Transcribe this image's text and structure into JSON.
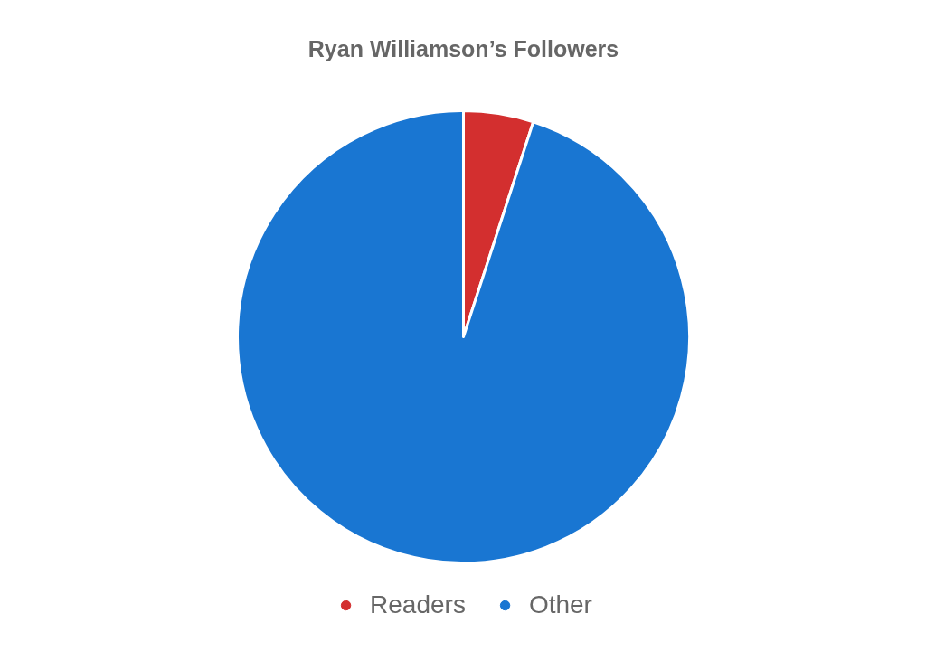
{
  "chart_data": {
    "type": "pie",
    "title": "Ryan Williamson’s Followers",
    "categories": [
      "Readers",
      "Other"
    ],
    "values": [
      5,
      95
    ],
    "colors": [
      "#d32f2f",
      "#1976d2"
    ],
    "legend": "bottom"
  }
}
